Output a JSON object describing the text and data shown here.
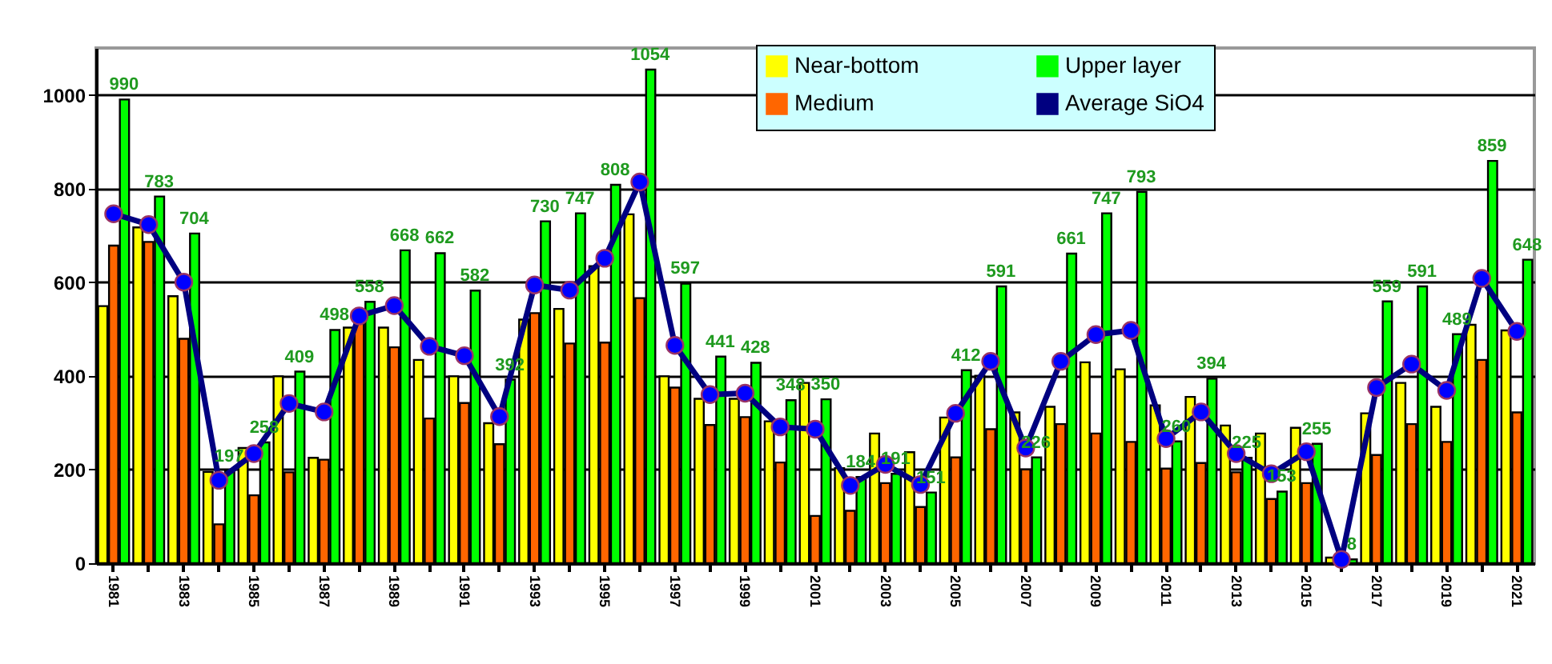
{
  "chart_data": {
    "type": "bar",
    "categories": [
      "1981",
      null,
      "1983",
      null,
      "1985",
      null,
      "1987",
      null,
      "1989",
      null,
      "1991",
      null,
      "1993",
      null,
      "1995",
      null,
      "1997",
      null,
      "1999",
      null,
      "2001",
      null,
      "2003",
      null,
      "2005",
      null,
      "2007",
      null,
      "2009",
      null,
      "2011",
      null,
      "2013",
      null,
      "2015",
      null,
      "2017",
      null,
      "2019",
      null,
      "2021"
    ],
    "series": [
      {
        "name": "Near-bottom",
        "color": "#ffff00",
        "values": [
          549,
          717,
          570,
          195,
          246,
          399,
          225,
          503,
          503,
          434,
          399,
          299,
          520,
          543,
          634,
          745,
          399,
          351,
          351,
          303,
          385,
          203,
          277,
          237,
          311,
          400,
          322,
          334,
          429,
          414,
          337,
          355,
          294,
          277,
          289,
          12,
          320,
          385,
          334,
          509,
          497
        ]
      },
      {
        "name": "Medium",
        "color": "#ff6600",
        "values": [
          678,
          686,
          479,
          83,
          145,
          194,
          221,
          520,
          461,
          309,
          342,
          254,
          534,
          469,
          471,
          566,
          375,
          295,
          312,
          215,
          101,
          112,
          171,
          120,
          226,
          286,
          200,
          297,
          277,
          259,
          202,
          214,
          194,
          137,
          171,
          4,
          231,
          297,
          259,
          434,
          322
        ]
      },
      {
        "name": "Upper layer",
        "color": "#00ff00",
        "values": [
          990,
          783,
          704,
          197,
          258,
          409,
          498,
          558,
          668,
          662,
          582,
          392,
          730,
          747,
          808,
          1054,
          597,
          441,
          428,
          348,
          350,
          184,
          191,
          151,
          412,
          591,
          226,
          661,
          747,
          793,
          260,
          394,
          225,
          153,
          255,
          8,
          559,
          591,
          489,
          859,
          648
        ],
        "value_labels": [
          "990",
          "783",
          "704",
          "197",
          "258",
          "409",
          "498",
          "558",
          "668",
          "662",
          "582",
          "392",
          "730",
          "747",
          "808",
          "1054",
          "597",
          "441",
          "428",
          "348",
          "350",
          "184",
          "191",
          "151",
          "412",
          "591",
          "226",
          "661",
          "747",
          "793",
          "260",
          "394",
          "225",
          "153",
          "255",
          "8",
          "559",
          "591",
          "489",
          "859",
          "648"
        ]
      },
      {
        "name": "Average SiO4",
        "type": "line",
        "color": "#000080",
        "values": [
          746,
          723,
          600,
          177,
          234,
          341,
          323,
          528,
          550,
          463,
          443,
          313,
          594,
          583,
          651,
          814,
          465,
          360,
          363,
          291,
          286,
          166,
          211,
          168,
          320,
          431,
          246,
          431,
          488,
          497,
          266,
          323,
          234,
          191,
          238,
          8,
          375,
          425,
          369,
          608,
          495
        ]
      }
    ],
    "ylim": [
      0,
      1100
    ],
    "yticks": [
      0,
      200,
      400,
      600,
      800,
      1000
    ],
    "grid": "y",
    "legend": "top right",
    "marker": "circle"
  }
}
